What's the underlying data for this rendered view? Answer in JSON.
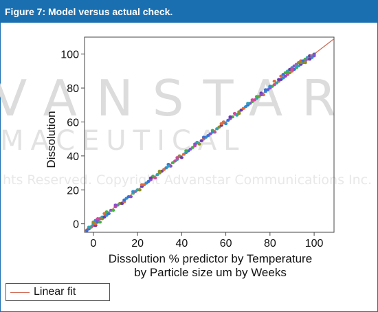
{
  "figure": {
    "label": "Figure 7: Model versus actual check."
  },
  "watermark": {
    "line1": "VANSTAR",
    "line2": "MACEUTICAL",
    "line3": "hts Reserved. Copyright Advanstar Communications Inc."
  },
  "chart_data": {
    "type": "scatter",
    "title": "",
    "xlabel_lines": [
      "Dissolution % predictor by Temperature",
      "by Particle size um by Weeks"
    ],
    "ylabel": "Dissolution",
    "xlim": [
      -4,
      109
    ],
    "ylim": [
      -5,
      110
    ],
    "xticks": [
      0,
      20,
      40,
      60,
      80,
      100
    ],
    "yticks": [
      0,
      20,
      40,
      60,
      80,
      100
    ],
    "fit_line": {
      "name": "Linear fit",
      "color": "#d06a55",
      "points": [
        [
          -4,
          -4
        ],
        [
          109,
          109
        ]
      ]
    },
    "point_colors": [
      "#3a6fd8",
      "#8a4fd0",
      "#44b044",
      "#d04a9a",
      "#2aa6b8",
      "#8c8f2a",
      "#6a3ab0",
      "#e06a3a",
      "#2f8fd0"
    ],
    "points": [
      [
        -3,
        -4
      ],
      [
        -2,
        -3
      ],
      [
        -1,
        -2
      ],
      [
        0,
        -1
      ],
      [
        0,
        0
      ],
      [
        0,
        1
      ],
      [
        1,
        -1
      ],
      [
        1,
        0
      ],
      [
        1,
        2
      ],
      [
        2,
        1
      ],
      [
        2,
        2
      ],
      [
        3,
        1
      ],
      [
        3,
        3
      ],
      [
        4,
        4
      ],
      [
        4,
        3
      ],
      [
        5,
        4
      ],
      [
        5,
        6
      ],
      [
        6,
        5
      ],
      [
        7,
        6
      ],
      [
        8,
        8
      ],
      [
        9,
        8
      ],
      [
        10,
        10
      ],
      [
        11,
        11
      ],
      [
        12,
        12
      ],
      [
        13,
        12
      ],
      [
        14,
        13
      ],
      [
        15,
        15
      ],
      [
        16,
        16
      ],
      [
        17,
        16
      ],
      [
        18,
        18
      ],
      [
        19,
        19
      ],
      [
        20,
        20
      ],
      [
        21,
        20
      ],
      [
        22,
        22
      ],
      [
        23,
        23
      ],
      [
        24,
        24
      ],
      [
        25,
        25
      ],
      [
        26,
        26
      ],
      [
        27,
        28
      ],
      [
        28,
        27
      ],
      [
        29,
        29
      ],
      [
        30,
        30
      ],
      [
        31,
        31
      ],
      [
        32,
        32
      ],
      [
        33,
        33
      ],
      [
        34,
        35
      ],
      [
        35,
        34
      ],
      [
        36,
        36
      ],
      [
        37,
        37
      ],
      [
        38,
        38
      ],
      [
        39,
        40
      ],
      [
        40,
        39
      ],
      [
        41,
        41
      ],
      [
        42,
        42
      ],
      [
        43,
        43
      ],
      [
        44,
        44
      ],
      [
        45,
        45
      ],
      [
        46,
        46
      ],
      [
        47,
        48
      ],
      [
        48,
        47
      ],
      [
        49,
        49
      ],
      [
        50,
        50
      ],
      [
        51,
        51
      ],
      [
        52,
        52
      ],
      [
        53,
        53
      ],
      [
        54,
        55
      ],
      [
        55,
        54
      ],
      [
        56,
        56
      ],
      [
        57,
        57
      ],
      [
        58,
        58
      ],
      [
        59,
        60
      ],
      [
        60,
        59
      ],
      [
        61,
        61
      ],
      [
        62,
        62
      ],
      [
        63,
        63
      ],
      [
        64,
        65
      ],
      [
        65,
        64
      ],
      [
        66,
        66
      ],
      [
        67,
        67
      ],
      [
        68,
        68
      ],
      [
        69,
        69
      ],
      [
        70,
        70
      ],
      [
        71,
        71
      ],
      [
        72,
        72
      ],
      [
        73,
        73
      ],
      [
        74,
        74
      ],
      [
        75,
        75
      ],
      [
        76,
        77
      ],
      [
        77,
        76
      ],
      [
        78,
        78
      ],
      [
        79,
        79
      ],
      [
        80,
        80
      ],
      [
        81,
        81
      ],
      [
        82,
        82
      ],
      [
        83,
        83
      ],
      [
        84,
        84
      ],
      [
        85,
        85
      ],
      [
        85,
        87
      ],
      [
        86,
        86
      ],
      [
        86,
        88
      ],
      [
        87,
        87
      ],
      [
        87,
        89
      ],
      [
        88,
        88
      ],
      [
        88,
        90
      ],
      [
        89,
        89
      ],
      [
        89,
        91
      ],
      [
        90,
        90
      ],
      [
        90,
        92
      ],
      [
        91,
        91
      ],
      [
        91,
        93
      ],
      [
        92,
        92
      ],
      [
        92,
        94
      ],
      [
        93,
        93
      ],
      [
        93,
        95
      ],
      [
        94,
        94
      ],
      [
        94,
        96
      ],
      [
        95,
        95
      ],
      [
        95,
        96
      ],
      [
        96,
        96
      ],
      [
        96,
        97
      ],
      [
        97,
        97
      ],
      [
        97,
        98
      ],
      [
        98,
        98
      ],
      [
        98,
        99
      ],
      [
        99,
        99
      ],
      [
        99,
        98
      ],
      [
        100,
        100
      ],
      [
        100,
        99
      ],
      [
        88,
        89
      ],
      [
        90,
        91
      ],
      [
        92,
        93
      ],
      [
        94,
        95
      ],
      [
        84,
        85
      ],
      [
        82,
        84
      ],
      [
        80,
        81
      ],
      [
        78,
        79
      ],
      [
        76,
        76
      ],
      [
        74,
        75
      ],
      [
        72,
        73
      ],
      [
        70,
        71
      ],
      [
        66,
        65
      ],
      [
        62,
        63
      ],
      [
        58,
        59
      ],
      [
        54,
        54
      ],
      [
        50,
        51
      ],
      [
        46,
        47
      ],
      [
        42,
        43
      ],
      [
        38,
        39
      ],
      [
        34,
        34
      ],
      [
        30,
        31
      ],
      [
        26,
        27
      ],
      [
        22,
        23
      ],
      [
        18,
        19
      ],
      [
        14,
        14
      ],
      [
        10,
        11
      ],
      [
        6,
        7
      ],
      [
        2,
        3
      ],
      [
        -2,
        -2
      ],
      [
        96,
        95
      ],
      [
        98,
        97
      ]
    ]
  },
  "legend": {
    "label": "Linear fit",
    "color": "#d06a55"
  }
}
